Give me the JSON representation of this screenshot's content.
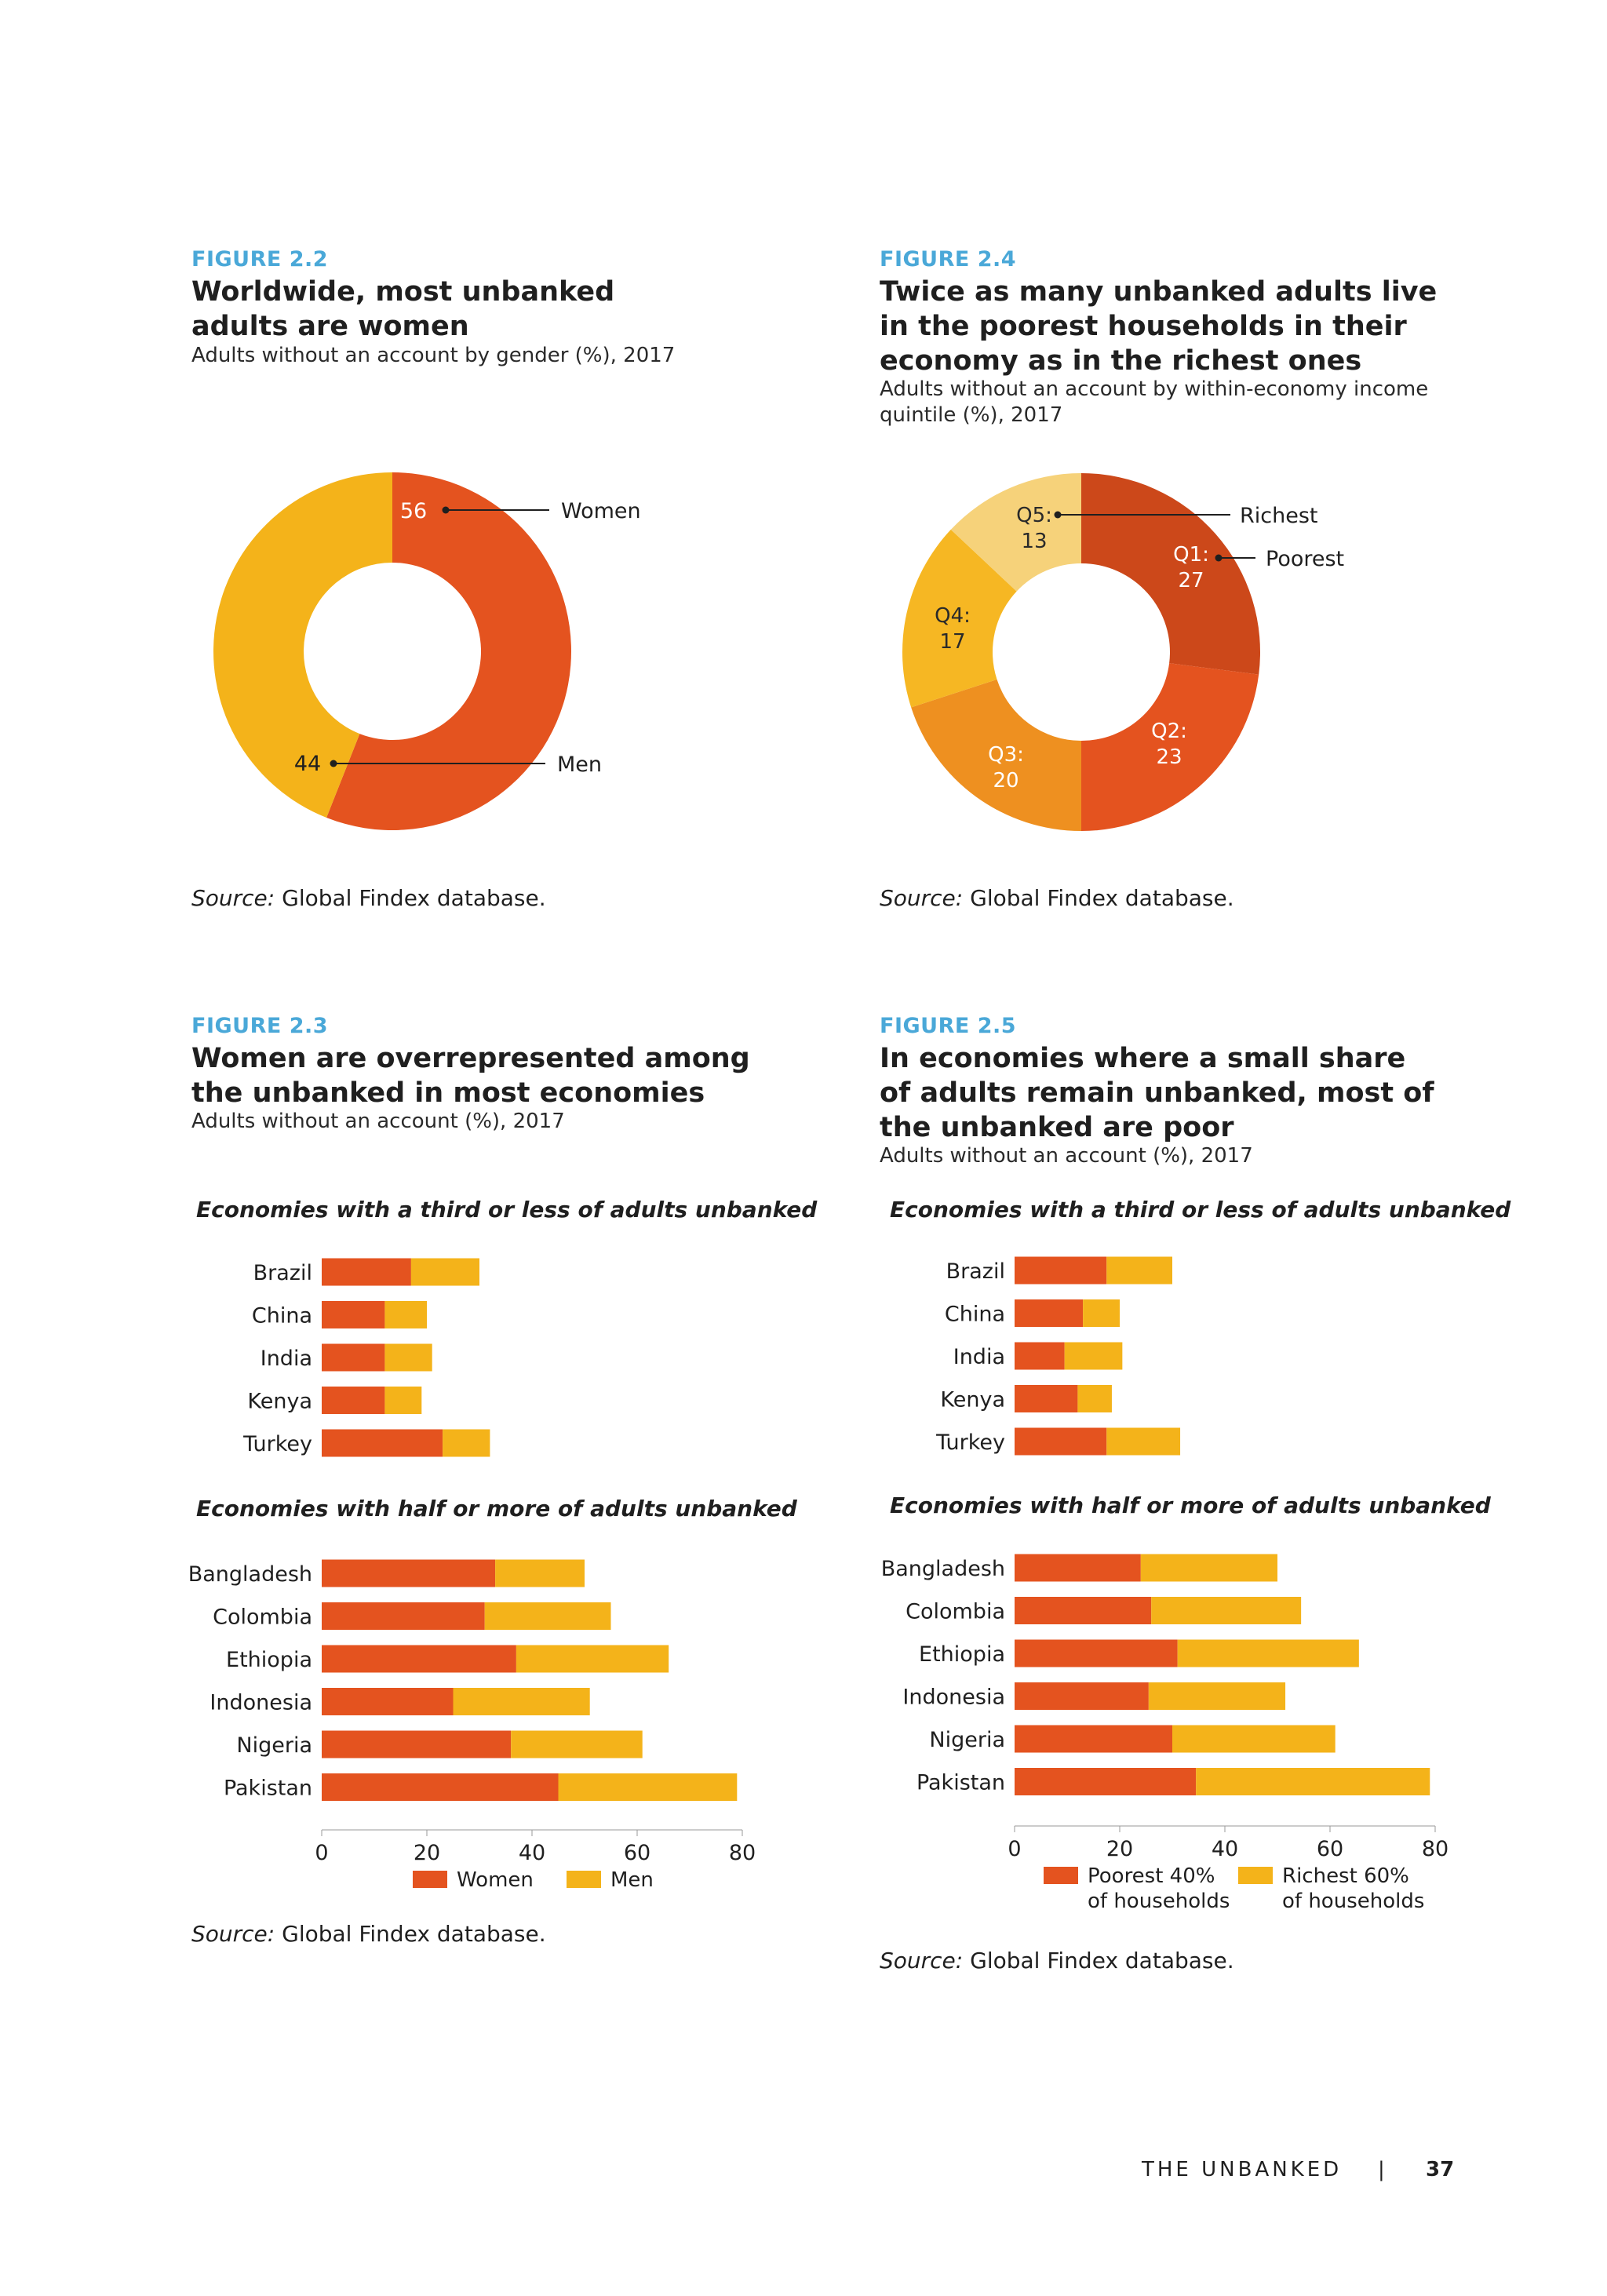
{
  "colors": {
    "figure_label": "#4aa8d8",
    "women": "#e4531f",
    "men": "#f4b31a",
    "q1": "#cc481a",
    "q2": "#e4531f",
    "q3": "#ee9020",
    "q4": "#f6b723",
    "q5": "#f6d27a"
  },
  "fig22": {
    "label": "FIGURE 2.2",
    "title": "Worldwide, most unbanked adults are women",
    "subtitle": "Adults without an account by gender (%), 2017",
    "source_prefix": "Source:",
    "source_text": " Global Findex database.",
    "chart_data": {
      "type": "pie",
      "slices": [
        {
          "label": "Women",
          "value": 56,
          "color": "#e4531f"
        },
        {
          "label": "Men",
          "value": 44,
          "color": "#f4b31a"
        }
      ]
    }
  },
  "fig24": {
    "label": "FIGURE 2.4",
    "title": "Twice as many unbanked adults live in the poorest households in their economy as in the richest ones",
    "subtitle": "Adults without an account by within-economy income quintile (%), 2017",
    "source_prefix": "Source:",
    "source_text": " Global Findex database.",
    "annot_richest": "Richest",
    "annot_poorest": "Poorest",
    "chart_data": {
      "type": "pie",
      "slices": [
        {
          "label": "Q1:",
          "value": 27,
          "color": "#cc481a"
        },
        {
          "label": "Q2:",
          "value": 23,
          "color": "#e4531f"
        },
        {
          "label": "Q3:",
          "value": 20,
          "color": "#ee9020"
        },
        {
          "label": "Q4:",
          "value": 17,
          "color": "#f6b723"
        },
        {
          "label": "Q5:",
          "value": 13,
          "color": "#f6d27a"
        }
      ]
    }
  },
  "fig23": {
    "label": "FIGURE 2.3",
    "title": "Women are overrepresented among the unbanked in most economies",
    "subtitle": "Adults without an account (%), 2017",
    "group1_title": "Economies with a third or less of adults unbanked",
    "group2_title": "Economies with half or more of adults unbanked",
    "source_prefix": "Source:",
    "source_text": " Global Findex database.",
    "chart_data": {
      "type": "bar",
      "stacked": true,
      "orientation": "horizontal",
      "xlim": [
        0,
        80
      ],
      "xticks": [
        "0",
        "20",
        "40",
        "60",
        "80"
      ],
      "legend": [
        {
          "name": "Women",
          "color": "#e4531f"
        },
        {
          "name": "Men",
          "color": "#f4b31a"
        }
      ],
      "group1": {
        "categories": [
          "Brazil",
          "China",
          "India",
          "Kenya",
          "Turkey"
        ],
        "series": [
          {
            "name": "Women",
            "values": [
              17,
              12,
              12,
              12,
              23
            ]
          },
          {
            "name": "Men",
            "values": [
              13,
              8,
              9,
              7,
              9
            ]
          }
        ]
      },
      "group2": {
        "categories": [
          "Bangladesh",
          "Colombia",
          "Ethiopia",
          "Indonesia",
          "Nigeria",
          "Pakistan"
        ],
        "series": [
          {
            "name": "Women",
            "values": [
              33,
              31,
              37,
              25,
              36,
              45
            ]
          },
          {
            "name": "Men",
            "values": [
              17,
              24,
              29,
              26,
              25,
              34
            ]
          }
        ]
      }
    }
  },
  "fig25": {
    "label": "FIGURE 2.5",
    "title": "In economies where a small share of adults remain unbanked, most of the unbanked are poor",
    "subtitle": "Adults without an account (%), 2017",
    "group1_title": "Economies with a third or less of adults unbanked",
    "group2_title": "Economies with half or more of adults unbanked",
    "source_prefix": "Source:",
    "source_text": " Global Findex database.",
    "chart_data": {
      "type": "bar",
      "stacked": true,
      "orientation": "horizontal",
      "xlim": [
        0,
        80
      ],
      "xticks": [
        "0",
        "20",
        "40",
        "60",
        "80"
      ],
      "legend": [
        {
          "name": "Poorest 40%",
          "name2": "of households",
          "color": "#e4531f"
        },
        {
          "name": "Richest 60%",
          "name2": "of households",
          "color": "#f4b31a"
        }
      ],
      "group1": {
        "categories": [
          "Brazil",
          "China",
          "India",
          "Kenya",
          "Turkey"
        ],
        "series": [
          {
            "name": "Poorest 40% of households",
            "values": [
              17.5,
              13,
              9.5,
              12,
              17.5
            ]
          },
          {
            "name": "Richest 60% of households",
            "values": [
              12.5,
              7,
              11,
              6.5,
              14
            ]
          }
        ]
      },
      "group2": {
        "categories": [
          "Bangladesh",
          "Colombia",
          "Ethiopia",
          "Indonesia",
          "Nigeria",
          "Pakistan"
        ],
        "series": [
          {
            "name": "Poorest 40% of households",
            "values": [
              24,
              26,
              31,
              25.5,
              30,
              34.5
            ]
          },
          {
            "name": "Richest 60% of households",
            "values": [
              26,
              28.5,
              34.5,
              26,
              31,
              44.5
            ]
          }
        ]
      }
    }
  },
  "footer": {
    "section": "THE UNBANKED",
    "separator": "|",
    "page": "37"
  }
}
